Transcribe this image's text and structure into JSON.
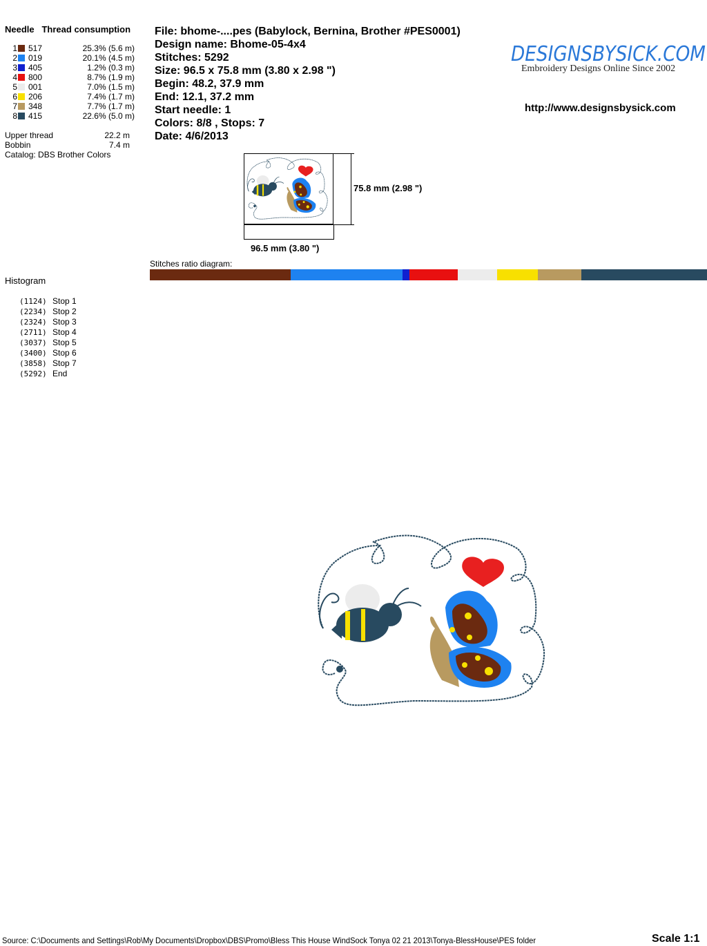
{
  "header": {
    "needle": "Needle",
    "thread_consumption": "Thread consumption"
  },
  "threads": [
    {
      "needle": "1",
      "code": "517",
      "color": "#6b2a10",
      "pct": "25.3% (5.6 m)",
      "ratio": 25.3
    },
    {
      "needle": "2",
      "code": "019",
      "color": "#1e82f0",
      "pct": "20.1% (4.5 m)",
      "ratio": 20.1
    },
    {
      "needle": "3",
      "code": "405",
      "color": "#1020d0",
      "pct": "1.2% (0.3 m)",
      "ratio": 1.2
    },
    {
      "needle": "4",
      "code": "800",
      "color": "#e81010",
      "pct": "8.7% (1.9 m)",
      "ratio": 8.7
    },
    {
      "needle": "5",
      "code": "001",
      "color": "#ececec",
      "pct": "7.0% (1.5 m)",
      "ratio": 7.0
    },
    {
      "needle": "6",
      "code": "206",
      "color": "#f8e000",
      "pct": "7.4% (1.7 m)",
      "ratio": 7.4
    },
    {
      "needle": "7",
      "code": "348",
      "color": "#b89a60",
      "pct": "7.7% (1.7 m)",
      "ratio": 7.7
    },
    {
      "needle": "8",
      "code": "415",
      "color": "#284a60",
      "pct": "22.6% (5.0 m)",
      "ratio": 22.6
    }
  ],
  "totals": {
    "upper_label": "Upper thread",
    "upper_value": "22.2 m",
    "bobbin_label": "Bobbin",
    "bobbin_value": "7.4 m",
    "catalog": "Catalog: DBS Brother Colors"
  },
  "info": {
    "file": "File: bhome-....pes  (Babylock, Bernina, Brother #PES0001)",
    "design_name": "Design name: Bhome-05-4x4",
    "stitches": "Stitches: 5292",
    "size": "Size: 96.5 x 75.8 mm (3.80 x 2.98 \")",
    "begin": "Begin: 48.2, 37.9 mm",
    "end": "End: 12.1, 37.2 mm",
    "start_needle": "Start needle: 1",
    "colors": "Colors: 8/8 , Stops: 7",
    "date": "Date: 4/6/2013"
  },
  "logo": {
    "text": "DesignsBySick.com",
    "tagline": "Embroidery Designs Online Since 2002",
    "url": "http://www.designsbysick.com"
  },
  "thumbnail": {
    "height_label": "75.8 mm (2.98 \")",
    "width_label": "96.5 mm (3.80 \")"
  },
  "ratio_label": "Stitches ratio diagram:",
  "histogram_label": "Histogram",
  "stops": [
    {
      "count": "(1124)",
      "label": "Stop 1"
    },
    {
      "count": "(2234)",
      "label": "Stop 2"
    },
    {
      "count": "(2324)",
      "label": "Stop 3"
    },
    {
      "count": "(2711)",
      "label": "Stop 4"
    },
    {
      "count": "(3037)",
      "label": "Stop 5"
    },
    {
      "count": "(3400)",
      "label": "Stop 6"
    },
    {
      "count": "(3858)",
      "label": "Stop 7"
    },
    {
      "count": "(5292)",
      "label": "End"
    }
  ],
  "footer": {
    "source": "Source: C:\\Documents and Settings\\Rob\\My Documents\\Dropbox\\DBS\\Promo\\Bless This House WindSock Tonya 02 21 2013\\Tonya-BlessHouse\\PES folder",
    "scale": "Scale 1:1"
  }
}
